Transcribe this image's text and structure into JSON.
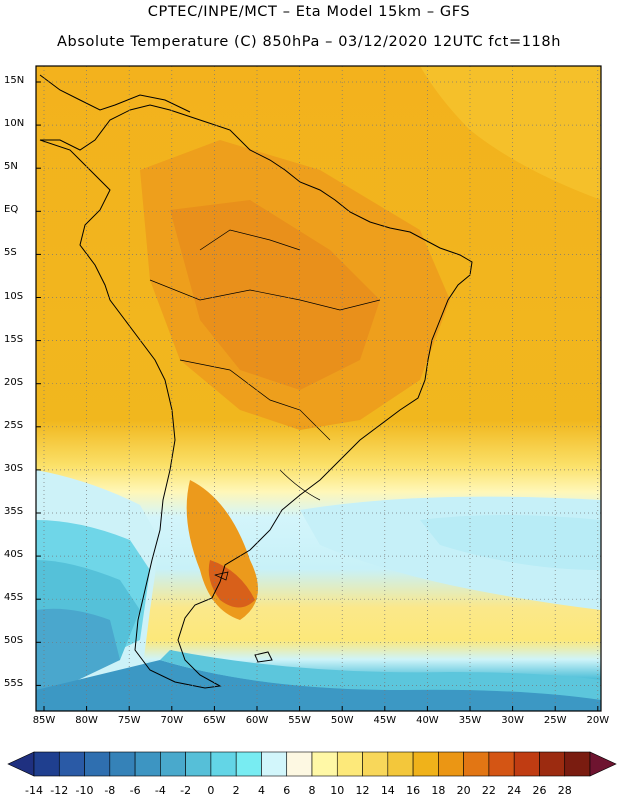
{
  "header": {
    "line1": "CPTEC/INPE/MCT –  Eta Model 15km – GFS",
    "line2": "Absolute Temperature (C) 850hPa – 03/12/2020 12UTC fct=118h"
  },
  "lat_labels": [
    "15N",
    "10N",
    "5N",
    "EQ",
    "5S",
    "10S",
    "15S",
    "20S",
    "25S",
    "30S",
    "35S",
    "40S",
    "45S",
    "50S",
    "55S"
  ],
  "lon_labels": [
    "85W",
    "80W",
    "75W",
    "70W",
    "65W",
    "60W",
    "55W",
    "50W",
    "45W",
    "40W",
    "35W",
    "30W",
    "25W",
    "20W"
  ],
  "colorbar": {
    "values": [
      "-14",
      "-12",
      "-10",
      "-8",
      "-6",
      "-4",
      "-2",
      "0",
      "2",
      "4",
      "6",
      "8",
      "10",
      "12",
      "14",
      "16",
      "18",
      "20",
      "22",
      "24",
      "26",
      "28"
    ],
    "colors": [
      "#1f3f8f",
      "#2a5aa6",
      "#2f6fb0",
      "#3582b8",
      "#3d95c2",
      "#49a9cc",
      "#56bfd8",
      "#63d5e6",
      "#78ecf2",
      "#d2f6fb",
      "#fdf8e2",
      "#fff8a6",
      "#fde97a",
      "#f8d75a",
      "#f3c73b",
      "#f0b21a",
      "#eb9614",
      "#e27614",
      "#d45514",
      "#c03c12",
      "#9c2b10",
      "#7a1c10"
    ],
    "left_tip_color": "#1f3080",
    "right_tip_color": "#6e1430"
  }
}
